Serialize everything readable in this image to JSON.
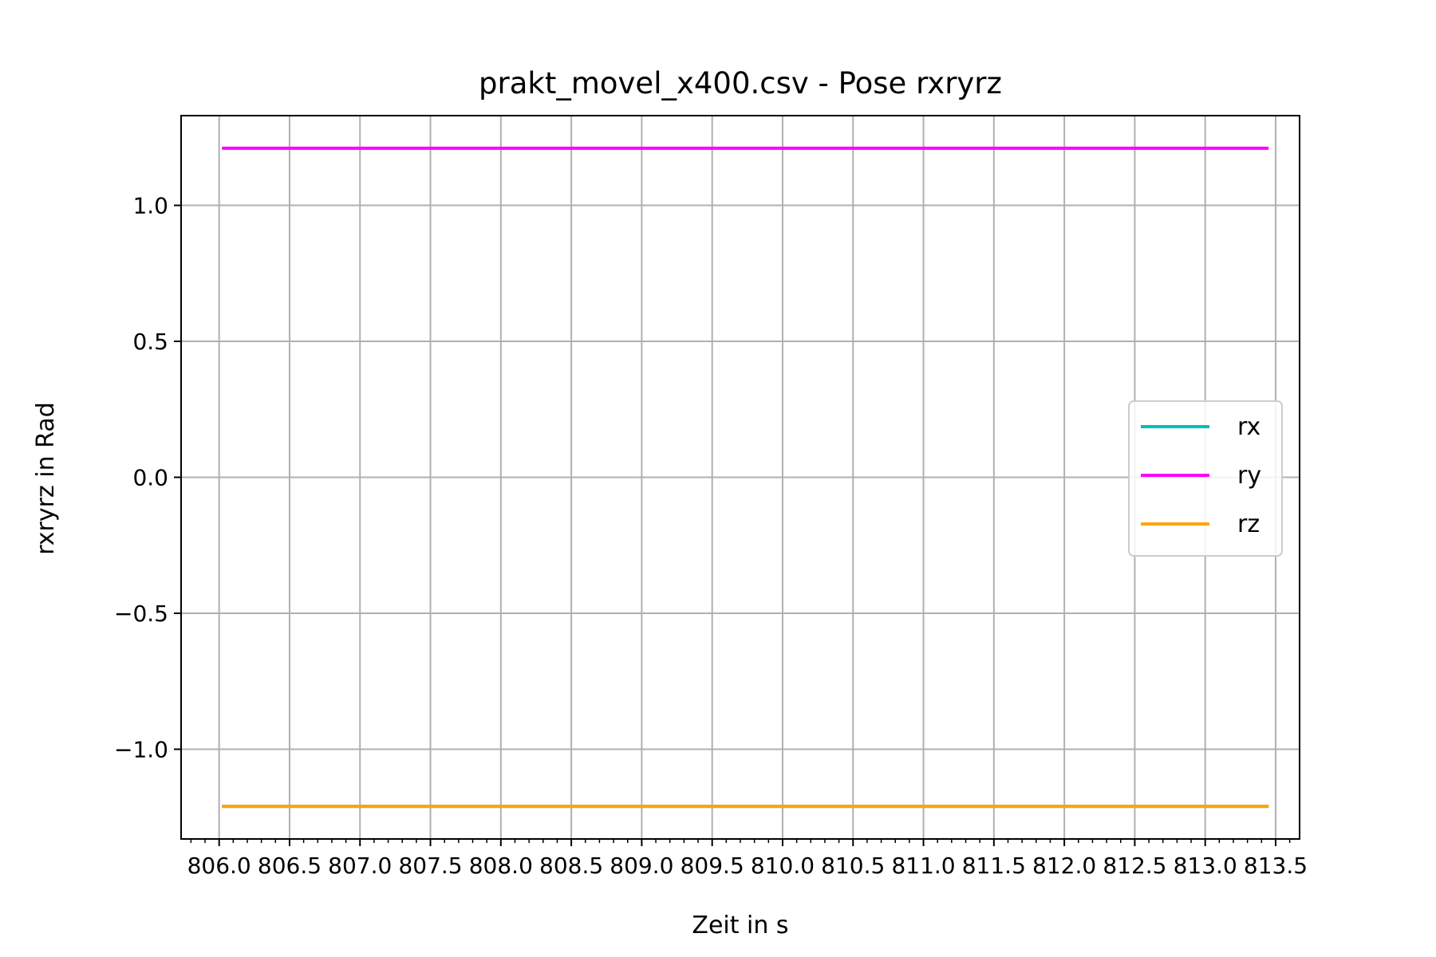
{
  "chart_data": {
    "type": "line",
    "title": "prakt_movel_x400.csv - Pose rxryrz",
    "xlabel": "Zeit in s",
    "ylabel": "rxryrz in Rad",
    "xlim": [
      805.73,
      813.67
    ],
    "ylim": [
      -1.33,
      1.33
    ],
    "xticks": [
      806.0,
      806.5,
      807.0,
      807.5,
      808.0,
      808.5,
      809.0,
      809.5,
      810.0,
      810.5,
      811.0,
      811.5,
      812.0,
      812.5,
      813.0,
      813.5
    ],
    "xtick_labels": [
      "806.0",
      "806.5",
      "807.0",
      "807.5",
      "808.0",
      "808.5",
      "809.0",
      "809.5",
      "810.0",
      "810.5",
      "811.0",
      "811.5",
      "812.0",
      "812.5",
      "813.0",
      "813.5"
    ],
    "yticks": [
      -1.0,
      -0.5,
      0.0,
      0.5,
      1.0
    ],
    "ytick_labels": [
      "−1.0",
      "−0.5",
      "0.0",
      "0.5",
      "1.0"
    ],
    "grid": true,
    "legend_position": "center-right",
    "series": [
      {
        "name": "rx",
        "color": "#00bfbf",
        "x": [
          806.02,
          813.45
        ],
        "y": [
          -1.21,
          -1.21
        ]
      },
      {
        "name": "ry",
        "color": "#ff00ff",
        "x": [
          806.02,
          813.45
        ],
        "y": [
          1.21,
          1.21
        ]
      },
      {
        "name": "rz",
        "color": "#ffa500",
        "x": [
          806.02,
          813.45
        ],
        "y": [
          -1.21,
          -1.21
        ]
      }
    ]
  }
}
